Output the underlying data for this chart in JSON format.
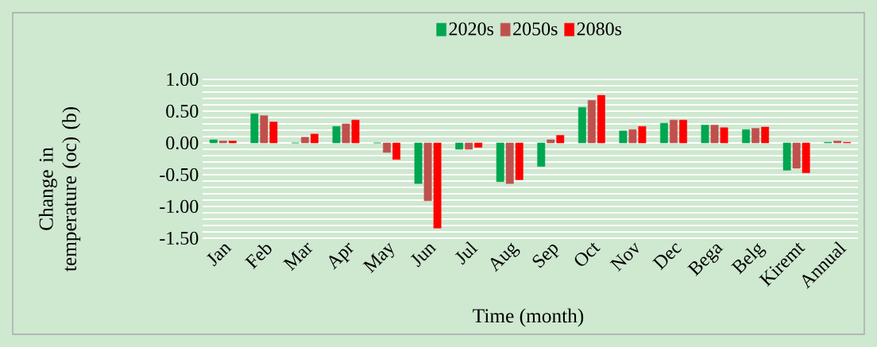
{
  "chart_data": {
    "type": "bar",
    "xlabel": "Time (month)",
    "ylabel": "Change in temperature (oc) (b)",
    "categories": [
      "Jan",
      "Feb",
      "Mar",
      "Apr",
      "May",
      "Jun",
      "Jul",
      "Aug",
      "Sep",
      "Oct",
      "Nov",
      "Dec",
      "Bega",
      "Belg",
      "Kiremt",
      "Annual"
    ],
    "series": [
      {
        "name": "2020s",
        "color": "#00a650",
        "values": [
          0.05,
          0.46,
          0.0,
          0.26,
          0.0,
          -0.64,
          -0.1,
          -0.61,
          -0.37,
          0.56,
          0.19,
          0.31,
          0.28,
          0.21,
          -0.43,
          0.01
        ]
      },
      {
        "name": "2050s",
        "color": "#c0504d",
        "values": [
          0.03,
          0.43,
          0.09,
          0.3,
          -0.15,
          -0.91,
          -0.1,
          -0.64,
          0.05,
          0.67,
          0.21,
          0.36,
          0.28,
          0.23,
          -0.4,
          0.03
        ]
      },
      {
        "name": "2080s",
        "color": "#ff0000",
        "values": [
          0.03,
          0.33,
          0.14,
          0.36,
          -0.26,
          -1.34,
          -0.07,
          -0.58,
          0.12,
          0.75,
          0.26,
          0.36,
          0.24,
          0.25,
          -0.47,
          0.01
        ]
      }
    ],
    "ylim": [
      -1.5,
      1.0
    ],
    "yticks": [
      {
        "value": -1.5,
        "label": "-1.50"
      },
      {
        "value": -1.0,
        "label": "-1.00"
      },
      {
        "value": -0.5,
        "label": "-0.50"
      },
      {
        "value": 0.0,
        "label": "0.00"
      },
      {
        "value": 0.5,
        "label": "0.50"
      },
      {
        "value": 1.0,
        "label": "1.00"
      }
    ],
    "grid": "y",
    "legend": "top"
  }
}
